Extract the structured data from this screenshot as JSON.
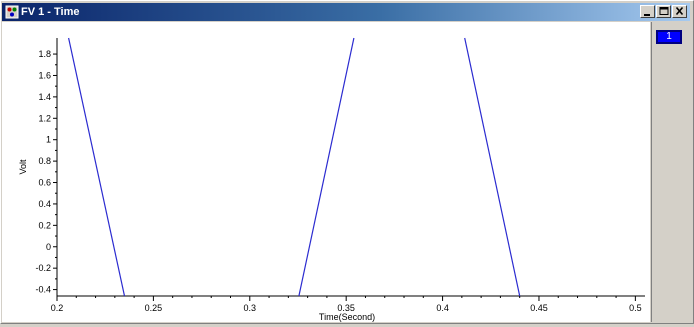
{
  "window": {
    "title": "FV 1 - Time",
    "icons": {
      "app": "fv-app-icon",
      "minimize": "minimize-icon",
      "maximize": "maximize-icon",
      "close": "close-icon"
    }
  },
  "side_panel": {
    "channel_chip_label": "1",
    "channel_color": "#0000ff"
  },
  "colors": {
    "series": "#2b2bd0",
    "plot_bg": "#ffffff",
    "window_bg": "#d4d0c8",
    "titlebar": "#0a246a"
  },
  "chart_data": {
    "type": "line",
    "title": "",
    "xlabel": "Time(Second)",
    "ylabel": "Volt",
    "xlim": [
      0.2,
      0.505
    ],
    "ylim": [
      -0.46,
      1.95
    ],
    "x_ticks": [
      0.2,
      0.25,
      0.3,
      0.35,
      0.4,
      0.45,
      0.5
    ],
    "x_tick_labels": [
      "0.2",
      "0.25",
      "0.3",
      "0.35",
      "0.4",
      "0.45",
      "0.5"
    ],
    "y_ticks": [
      1.8,
      1.6,
      1.4,
      1.2,
      1,
      0.8,
      0.6,
      0.4,
      0.2,
      0,
      -0.2,
      -0.4
    ],
    "y_tick_labels": [
      "1.8",
      "1.6",
      "1.4",
      "1.2",
      "1",
      "0.8",
      "0.6",
      "0.4",
      "0.2",
      "0",
      "-0.2",
      "-0.4"
    ],
    "grid": false,
    "legend": "none",
    "series": [
      {
        "segments": [
          {
            "x": [
              0.206,
              0.235
            ],
            "y": [
              1.95,
              -0.46
            ]
          },
          {
            "x": [
              0.3255,
              0.354
            ],
            "y": [
              -0.46,
              1.95
            ]
          },
          {
            "x": [
              0.4115,
              0.44
            ],
            "y": [
              1.95,
              -0.46
            ]
          }
        ]
      }
    ]
  }
}
